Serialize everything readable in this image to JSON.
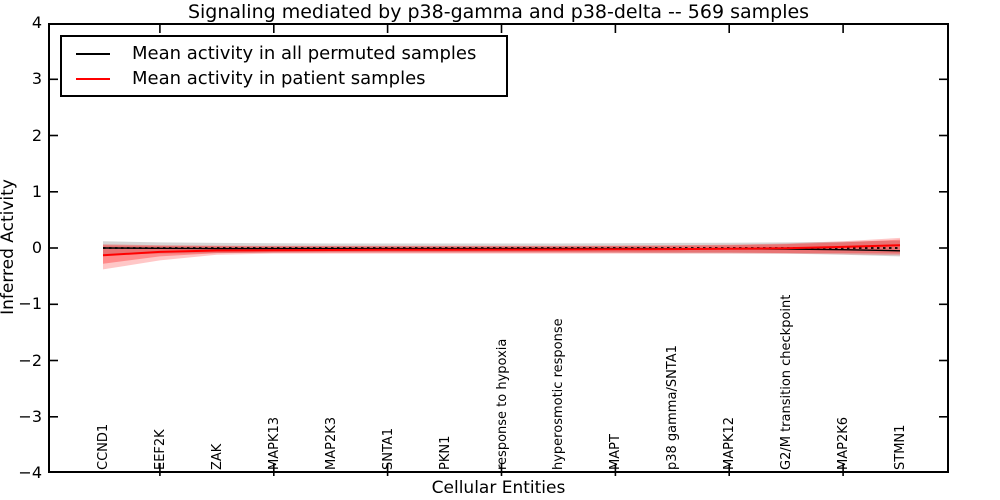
{
  "chart_data": {
    "type": "line",
    "title": "Signaling mediated by p38-gamma and p38-delta -- 569 samples",
    "xlabel": "Cellular Entities",
    "ylabel": "Inferred Activity",
    "ylim": [
      -4,
      4
    ],
    "ytick_values": [
      4,
      3,
      2,
      1,
      0,
      -1,
      -2,
      -3,
      -4
    ],
    "ytick_labels": [
      "4",
      "3",
      "2",
      "1",
      "0",
      "−1",
      "−2",
      "−3",
      "−4"
    ],
    "categories": [
      "CCND1",
      "EEF2K",
      "ZAK",
      "MAPK13",
      "MAP2K3",
      "SNTA1",
      "PKN1",
      "response to hypoxia",
      "hyperosmotic response",
      "MAPT",
      "p38 gamma/SNTA1",
      "MAPK12",
      "G2/M transition checkpoint",
      "MAP2K6",
      "STMN1"
    ],
    "xtick_indices": [
      1,
      3,
      5,
      7,
      9,
      11,
      13
    ],
    "legend_position": "upper left",
    "grid": false,
    "zero_line": {
      "value": 0,
      "style": "dotted",
      "color": "#000000"
    },
    "series": [
      {
        "name": "Mean activity in all permuted samples",
        "color": "#000000",
        "style": "solid",
        "values": [
          0.0,
          -0.005,
          -0.01,
          -0.01,
          -0.01,
          -0.01,
          -0.01,
          -0.01,
          -0.01,
          -0.01,
          -0.012,
          -0.015,
          -0.02,
          -0.03,
          -0.05
        ]
      },
      {
        "name": "Mean activity in patient samples",
        "color": "#ff0000",
        "style": "solid",
        "values": [
          -0.13,
          -0.07,
          -0.045,
          -0.04,
          -0.035,
          -0.03,
          -0.03,
          -0.028,
          -0.026,
          -0.024,
          -0.02,
          -0.015,
          -0.005,
          0.02,
          0.05
        ]
      }
    ],
    "bands": [
      {
        "name": "permuted-samples-range",
        "color": "#888888",
        "opacity": 0.35,
        "upper": [
          0.12,
          0.1,
          0.09,
          0.085,
          0.08,
          0.08,
          0.08,
          0.08,
          0.08,
          0.085,
          0.09,
          0.095,
          0.1,
          0.11,
          0.13
        ],
        "lower": [
          -0.12,
          -0.1,
          -0.09,
          -0.085,
          -0.08,
          -0.08,
          -0.08,
          -0.08,
          -0.08,
          -0.085,
          -0.09,
          -0.095,
          -0.1,
          -0.12,
          -0.15
        ]
      },
      {
        "name": "patient-samples-range-outer",
        "color": "#ff0000",
        "opacity": 0.22,
        "upper": [
          0.07,
          0.05,
          0.045,
          0.04,
          0.04,
          0.04,
          0.04,
          0.04,
          0.04,
          0.045,
          0.05,
          0.06,
          0.08,
          0.12,
          0.18
        ],
        "lower": [
          -0.38,
          -0.22,
          -0.12,
          -0.1,
          -0.1,
          -0.1,
          -0.1,
          -0.1,
          -0.1,
          -0.1,
          -0.1,
          -0.1,
          -0.1,
          -0.11,
          -0.13
        ]
      },
      {
        "name": "patient-samples-range-inner",
        "color": "#ff0000",
        "opacity": 0.3,
        "upper": [
          0.05,
          0.04,
          0.035,
          0.03,
          0.03,
          0.03,
          0.03,
          0.03,
          0.03,
          0.035,
          0.04,
          0.05,
          0.07,
          0.1,
          0.15
        ],
        "lower": [
          -0.28,
          -0.15,
          -0.09,
          -0.08,
          -0.08,
          -0.08,
          -0.08,
          -0.08,
          -0.08,
          -0.08,
          -0.08,
          -0.08,
          -0.09,
          -0.09,
          -0.1
        ]
      }
    ]
  }
}
